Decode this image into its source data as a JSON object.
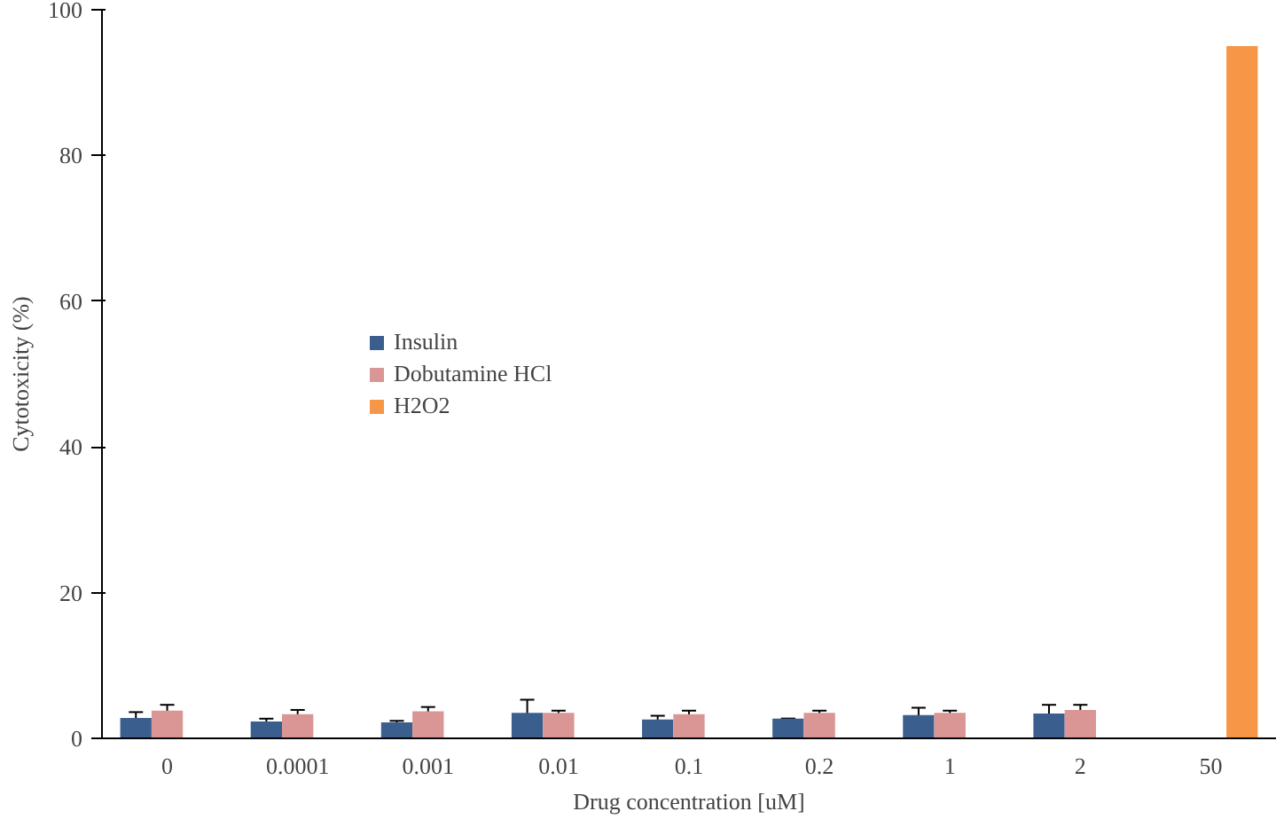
{
  "chart_data": {
    "type": "bar",
    "xlabel": "Drug concentration [uM]",
    "ylabel": "Cytotoxicity (%)",
    "categories": [
      "0",
      "0.0001",
      "0.001",
      "0.01",
      "0.1",
      "0.2",
      "1",
      "2",
      "50"
    ],
    "series": [
      {
        "name": "Insulin",
        "color": "#3a5f8f",
        "values": [
          2.8,
          2.3,
          2.2,
          3.5,
          2.6,
          2.7,
          3.2,
          3.4,
          null
        ],
        "errors": [
          0.8,
          0.4,
          0.2,
          1.8,
          0.5,
          0,
          1.0,
          1.2,
          null
        ]
      },
      {
        "name": "Dobutamine HCl",
        "color": "#d99694",
        "values": [
          3.8,
          3.3,
          3.7,
          3.5,
          3.3,
          3.5,
          3.5,
          3.9,
          null
        ],
        "errors": [
          0.8,
          0.6,
          0.6,
          0.3,
          0.5,
          0.3,
          0.3,
          0.7,
          null
        ]
      },
      {
        "name": "H2O2",
        "color": "#f79646",
        "values": [
          null,
          null,
          null,
          null,
          null,
          null,
          null,
          null,
          95
        ]
      }
    ],
    "ylim": [
      0,
      100
    ],
    "yticks": [
      0,
      20,
      40,
      60,
      80,
      100
    ],
    "grid": false,
    "legend": "center left"
  }
}
